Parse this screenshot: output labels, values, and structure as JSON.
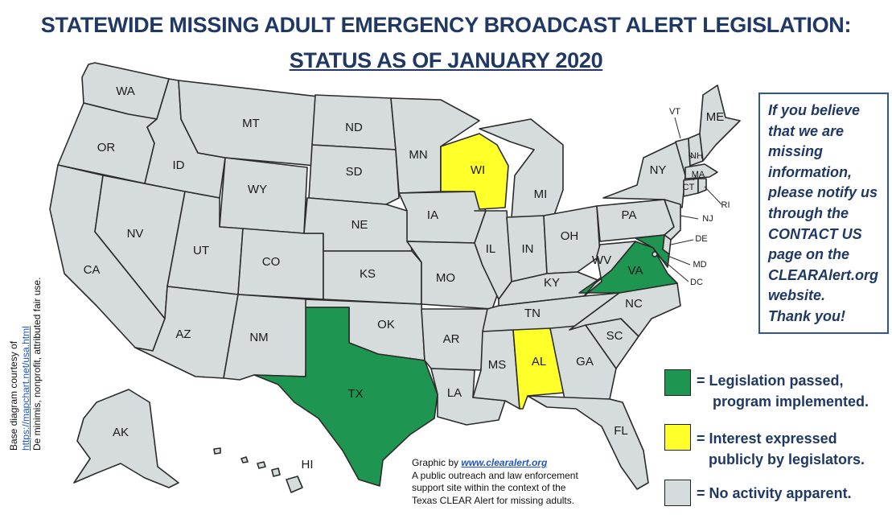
{
  "title_line1": "STATEWIDE MISSING ADULT EMERGENCY BROADCAST ALERT LEGISLATION:",
  "title_line2": "STATUS AS OF JANUARY 2020",
  "colors": {
    "passed": "#1e9550",
    "interest": "#ffff2a",
    "none": "#d6dbdb",
    "title": "#1f3864",
    "border": "#2e5597"
  },
  "states": {
    "WA": {
      "label": "WA",
      "status": "none"
    },
    "OR": {
      "label": "OR",
      "status": "none"
    },
    "CA": {
      "label": "CA",
      "status": "none"
    },
    "ID": {
      "label": "ID",
      "status": "none"
    },
    "NV": {
      "label": "NV",
      "status": "none"
    },
    "MT": {
      "label": "MT",
      "status": "none"
    },
    "WY": {
      "label": "WY",
      "status": "none"
    },
    "UT": {
      "label": "UT",
      "status": "none"
    },
    "AZ": {
      "label": "AZ",
      "status": "none"
    },
    "CO": {
      "label": "CO",
      "status": "none"
    },
    "NM": {
      "label": "NM",
      "status": "none"
    },
    "ND": {
      "label": "ND",
      "status": "none"
    },
    "SD": {
      "label": "SD",
      "status": "none"
    },
    "NE": {
      "label": "NE",
      "status": "none"
    },
    "KS": {
      "label": "KS",
      "status": "none"
    },
    "OK": {
      "label": "OK",
      "status": "none"
    },
    "TX": {
      "label": "TX",
      "status": "passed"
    },
    "MN": {
      "label": "MN",
      "status": "none"
    },
    "IA": {
      "label": "IA",
      "status": "none"
    },
    "MO": {
      "label": "MO",
      "status": "none"
    },
    "AR": {
      "label": "AR",
      "status": "none"
    },
    "LA": {
      "label": "LA",
      "status": "none"
    },
    "WI": {
      "label": "WI",
      "status": "interest"
    },
    "IL": {
      "label": "IL",
      "status": "none"
    },
    "MS": {
      "label": "MS",
      "status": "none"
    },
    "MI": {
      "label": "MI",
      "status": "none"
    },
    "IN": {
      "label": "IN",
      "status": "none"
    },
    "KY": {
      "label": "KY",
      "status": "none"
    },
    "TN": {
      "label": "TN",
      "status": "none"
    },
    "AL": {
      "label": "AL",
      "status": "interest"
    },
    "OH": {
      "label": "OH",
      "status": "none"
    },
    "GA": {
      "label": "GA",
      "status": "none"
    },
    "FL": {
      "label": "FL",
      "status": "none"
    },
    "SC": {
      "label": "SC",
      "status": "none"
    },
    "NC": {
      "label": "NC",
      "status": "none"
    },
    "VA": {
      "label": "VA",
      "status": "passed"
    },
    "WV": {
      "label": "WV",
      "status": "none"
    },
    "PA": {
      "label": "PA",
      "status": "none"
    },
    "NY": {
      "label": "NY",
      "status": "none"
    },
    "ME": {
      "label": "ME",
      "status": "none"
    },
    "VT": {
      "label": "VT",
      "status": "none"
    },
    "NH": {
      "label": "NH",
      "status": "none"
    },
    "MA": {
      "label": "MA",
      "status": "none"
    },
    "CT": {
      "label": "CT",
      "status": "none"
    },
    "RI": {
      "label": "RI",
      "status": "none"
    },
    "NJ": {
      "label": "NJ",
      "status": "none"
    },
    "DE": {
      "label": "DE",
      "status": "none"
    },
    "MD": {
      "label": "MD",
      "status": "passed"
    },
    "DC": {
      "label": "DC",
      "status": "none"
    },
    "AK": {
      "label": "AK",
      "status": "none"
    },
    "HI": {
      "label": "HI",
      "status": "none"
    }
  },
  "info_box": "If you believe that we are missing information, please notify us through the CONTACT US page on the CLEARAlert.org website. Thank you!",
  "info_lines": [
    "If you believe",
    "that we are",
    "missing",
    "information,",
    "please notify us",
    "through the",
    "CONTACT US",
    "page on the",
    "CLEARAlert.org",
    "website.",
    "Thank you!"
  ],
  "legend": [
    {
      "status": "passed",
      "text": "= Legislation passed,\n    program implemented."
    },
    {
      "status": "interest",
      "text": "= Interest expressed\n   publicly by legislators."
    },
    {
      "status": "none",
      "text": "= No activity apparent."
    }
  ],
  "credit": {
    "prefix": "Graphic by ",
    "link": "www.clearalert.org",
    "line2": "A public outreach and law enforcement",
    "line3": "support site within the context of the",
    "line4": "Texas CLEAR Alert for missing adults."
  },
  "attribution": {
    "line1": "Base diagram courtesy of",
    "url": "https://mapchart.net/usa.html",
    "line3": "De minimis, nonprofit, attributed fair use."
  }
}
